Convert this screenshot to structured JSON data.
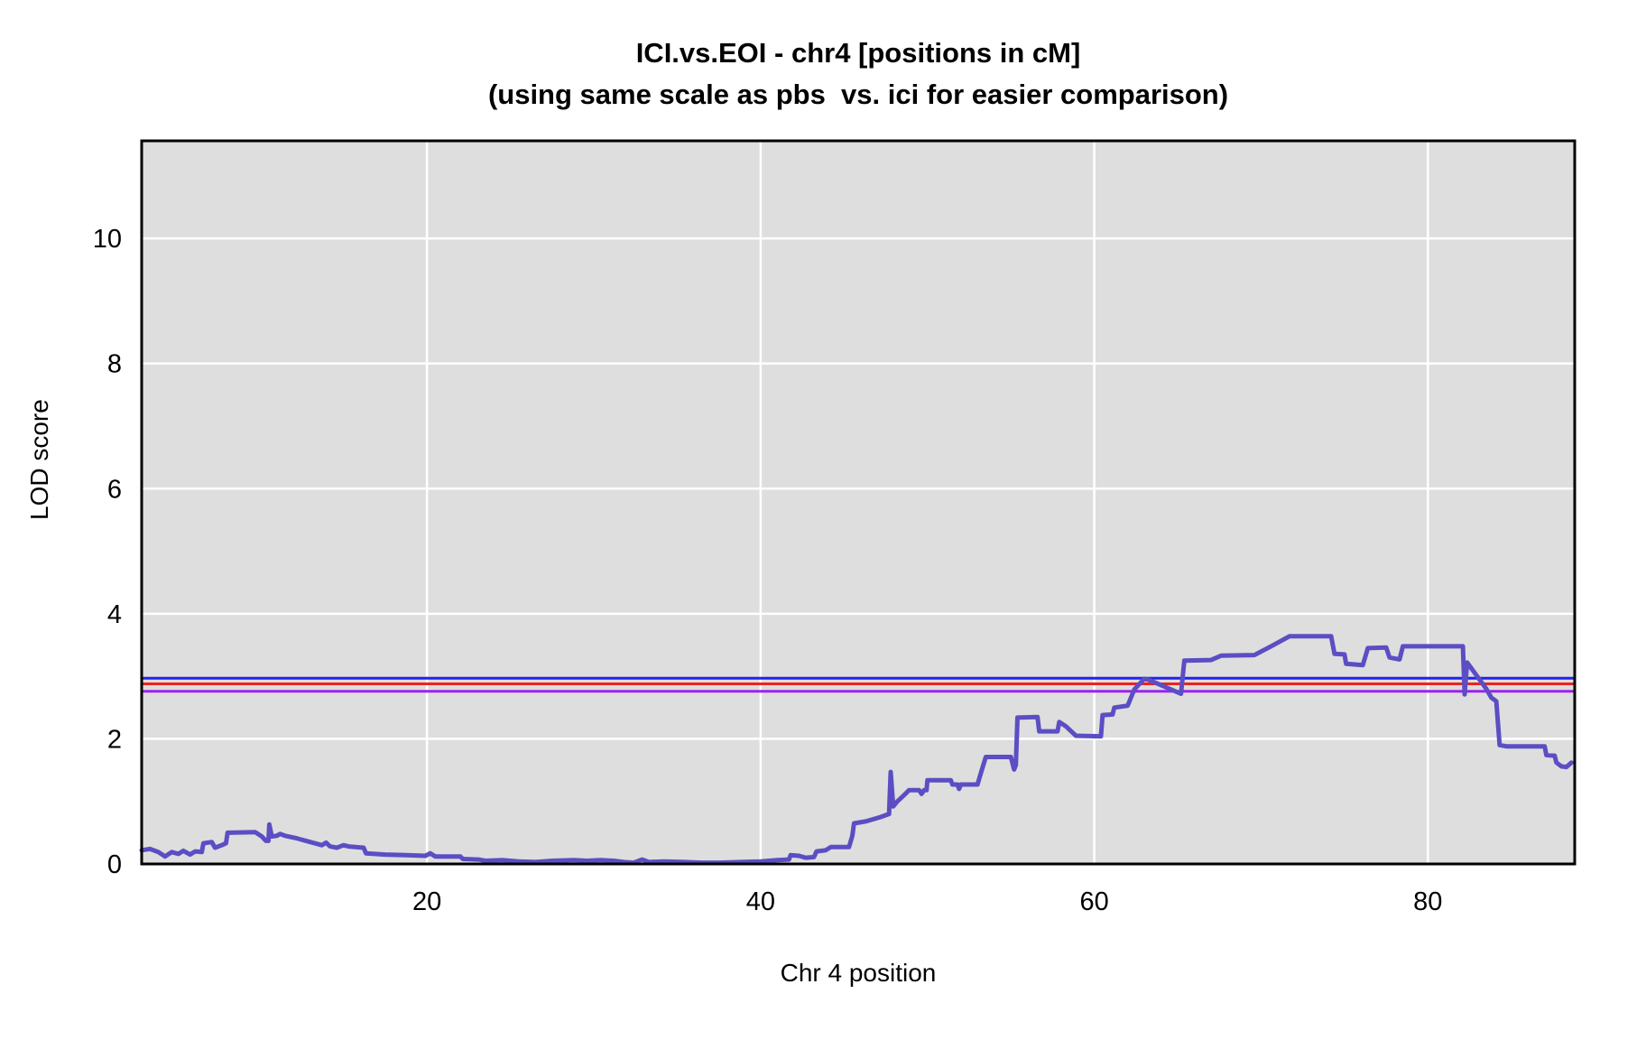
{
  "figure": {
    "title": "ICI.vs.EOI - chr4 [positions in cM]",
    "subtitle": "(using same scale as pbs  vs. ici for easier comparison)"
  },
  "chart_data": {
    "type": "line",
    "title": "ICI.vs.EOI - chr4 [positions in cM]",
    "subtitle": "(using same scale as pbs  vs. ici for easier comparison)",
    "xlabel": "Chr 4 position",
    "ylabel": "LOD score",
    "xlim": [
      2.9,
      88.8
    ],
    "ylim": [
      0,
      11.56
    ],
    "x_ticks": [
      20,
      40,
      60,
      80
    ],
    "y_ticks": [
      0,
      2,
      4,
      6,
      8,
      10
    ],
    "grid": true,
    "legend": "none",
    "colors": {
      "plot_background": "#dedede",
      "gridline": "#ffffff",
      "border": "#000000",
      "text": "#000000"
    },
    "threshold_lines": [
      {
        "name": "threshold-blue",
        "value": 2.97,
        "color": "#2222ee"
      },
      {
        "name": "threshold-red",
        "value": 2.88,
        "color": "#ee2222"
      },
      {
        "name": "threshold-purple",
        "value": 2.76,
        "color": "#a020f0"
      }
    ],
    "series": [
      {
        "name": "LOD curve ICI.vs.EOI chr4",
        "color": "#5b4ec4",
        "width": 5,
        "points": [
          [
            2.9,
            0.22
          ],
          [
            3.4,
            0.24
          ],
          [
            3.9,
            0.19
          ],
          [
            4.3,
            0.12
          ],
          [
            4.7,
            0.19
          ],
          [
            5.1,
            0.16
          ],
          [
            5.4,
            0.21
          ],
          [
            5.8,
            0.15
          ],
          [
            6.1,
            0.2
          ],
          [
            6.5,
            0.19
          ],
          [
            6.6,
            0.33
          ],
          [
            7.1,
            0.35
          ],
          [
            7.3,
            0.26
          ],
          [
            7.7,
            0.3
          ],
          [
            7.95,
            0.33
          ],
          [
            8.05,
            0.5
          ],
          [
            9.7,
            0.51
          ],
          [
            10.1,
            0.44
          ],
          [
            10.35,
            0.37
          ],
          [
            10.5,
            0.37
          ],
          [
            10.55,
            0.63
          ],
          [
            10.7,
            0.44
          ],
          [
            11.0,
            0.45
          ],
          [
            11.2,
            0.48
          ],
          [
            11.5,
            0.45
          ],
          [
            12.2,
            0.41
          ],
          [
            13.0,
            0.35
          ],
          [
            13.7,
            0.3
          ],
          [
            13.95,
            0.34
          ],
          [
            14.2,
            0.28
          ],
          [
            14.6,
            0.26
          ],
          [
            15.0,
            0.3
          ],
          [
            15.3,
            0.28
          ],
          [
            16.2,
            0.26
          ],
          [
            16.35,
            0.17
          ],
          [
            17.5,
            0.15
          ],
          [
            18.8,
            0.14
          ],
          [
            19.9,
            0.13
          ],
          [
            20.2,
            0.17
          ],
          [
            20.5,
            0.12
          ],
          [
            22.0,
            0.12
          ],
          [
            22.15,
            0.08
          ],
          [
            23.1,
            0.07
          ],
          [
            23.5,
            0.05
          ],
          [
            24.5,
            0.06
          ],
          [
            25.5,
            0.04
          ],
          [
            26.5,
            0.03
          ],
          [
            27.5,
            0.05
          ],
          [
            28.8,
            0.06
          ],
          [
            29.6,
            0.05
          ],
          [
            30.4,
            0.06
          ],
          [
            31.2,
            0.05
          ],
          [
            31.8,
            0.03
          ],
          [
            32.4,
            0.02
          ],
          [
            32.9,
            0.07
          ],
          [
            33.3,
            0.03
          ],
          [
            34.2,
            0.04
          ],
          [
            35.5,
            0.03
          ],
          [
            36.5,
            0.02
          ],
          [
            37.5,
            0.02
          ],
          [
            38.8,
            0.03
          ],
          [
            40.0,
            0.04
          ],
          [
            41.0,
            0.06
          ],
          [
            41.7,
            0.07
          ],
          [
            41.8,
            0.14
          ],
          [
            42.3,
            0.13
          ],
          [
            42.7,
            0.1
          ],
          [
            43.2,
            0.11
          ],
          [
            43.35,
            0.2
          ],
          [
            43.9,
            0.22
          ],
          [
            44.2,
            0.27
          ],
          [
            45.3,
            0.27
          ],
          [
            45.5,
            0.45
          ],
          [
            45.6,
            0.65
          ],
          [
            46.3,
            0.68
          ],
          [
            47.2,
            0.75
          ],
          [
            47.7,
            0.8
          ],
          [
            47.8,
            1.47
          ],
          [
            47.95,
            0.92
          ],
          [
            48.2,
            1.0
          ],
          [
            48.6,
            1.1
          ],
          [
            48.9,
            1.18
          ],
          [
            49.5,
            1.18
          ],
          [
            49.65,
            1.12
          ],
          [
            49.8,
            1.18
          ],
          [
            49.95,
            1.18
          ],
          [
            50.0,
            1.34
          ],
          [
            51.4,
            1.34
          ],
          [
            51.5,
            1.27
          ],
          [
            51.8,
            1.27
          ],
          [
            51.9,
            1.2
          ],
          [
            52.0,
            1.27
          ],
          [
            53.0,
            1.27
          ],
          [
            53.2,
            1.45
          ],
          [
            53.5,
            1.71
          ],
          [
            55.0,
            1.71
          ],
          [
            55.2,
            1.51
          ],
          [
            55.3,
            1.58
          ],
          [
            55.4,
            2.34
          ],
          [
            56.6,
            2.35
          ],
          [
            56.7,
            2.12
          ],
          [
            57.8,
            2.12
          ],
          [
            57.9,
            2.27
          ],
          [
            58.3,
            2.2
          ],
          [
            58.9,
            2.05
          ],
          [
            60.4,
            2.04
          ],
          [
            60.5,
            2.38
          ],
          [
            61.1,
            2.39
          ],
          [
            61.2,
            2.5
          ],
          [
            62.0,
            2.53
          ],
          [
            62.4,
            2.79
          ],
          [
            63.0,
            2.96
          ],
          [
            63.3,
            2.94
          ],
          [
            65.2,
            2.72
          ],
          [
            65.4,
            3.25
          ],
          [
            67.0,
            3.26
          ],
          [
            67.6,
            3.33
          ],
          [
            69.6,
            3.34
          ],
          [
            70.6,
            3.48
          ],
          [
            71.7,
            3.64
          ],
          [
            74.2,
            3.64
          ],
          [
            74.4,
            3.36
          ],
          [
            75.0,
            3.35
          ],
          [
            75.1,
            3.2
          ],
          [
            76.1,
            3.18
          ],
          [
            76.4,
            3.45
          ],
          [
            77.5,
            3.46
          ],
          [
            77.7,
            3.3
          ],
          [
            78.3,
            3.27
          ],
          [
            78.5,
            3.48
          ],
          [
            82.1,
            3.48
          ],
          [
            82.2,
            2.71
          ],
          [
            82.35,
            3.22
          ],
          [
            83.5,
            2.8
          ],
          [
            83.8,
            2.66
          ],
          [
            84.1,
            2.6
          ],
          [
            84.3,
            1.9
          ],
          [
            84.7,
            1.88
          ],
          [
            87.0,
            1.88
          ],
          [
            87.1,
            1.74
          ],
          [
            87.6,
            1.73
          ],
          [
            87.7,
            1.62
          ],
          [
            88.0,
            1.56
          ],
          [
            88.3,
            1.55
          ],
          [
            88.6,
            1.62
          ]
        ]
      }
    ]
  }
}
